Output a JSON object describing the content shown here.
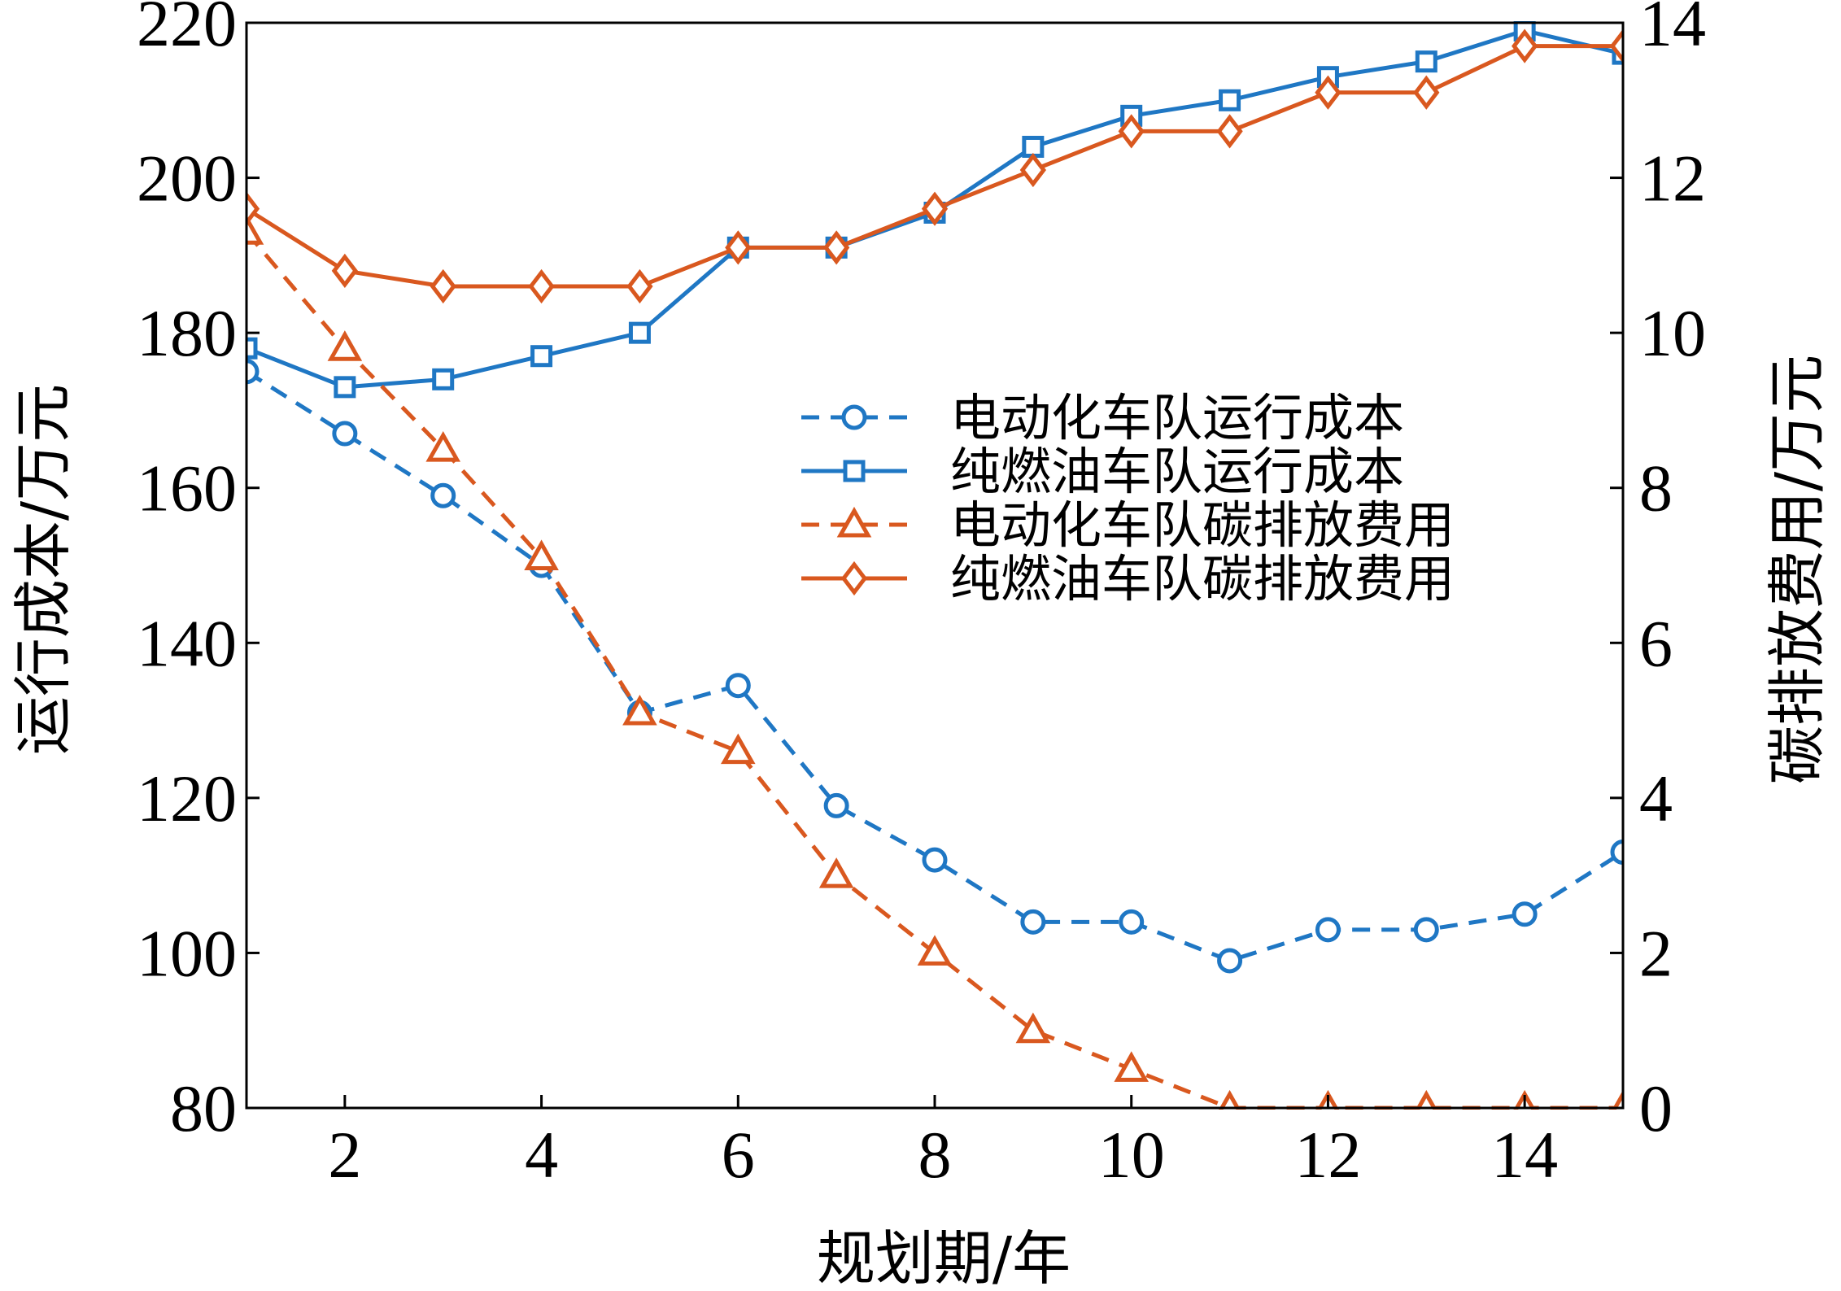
{
  "chart_data": {
    "type": "line",
    "xlabel": "规划期/年",
    "ylabel_left": "运行成本/万元",
    "ylabel_right": "碳排放费用/万元",
    "xlim": [
      1,
      15
    ],
    "ylim_left": [
      80,
      220
    ],
    "ylim_right": [
      0,
      14
    ],
    "x_ticks": [
      2,
      4,
      6,
      8,
      10,
      12,
      14
    ],
    "y_ticks_left": [
      80,
      100,
      120,
      140,
      160,
      180,
      200,
      220
    ],
    "y_ticks_right": [
      0,
      2,
      4,
      6,
      8,
      10,
      12,
      14
    ],
    "x_tick_labels": [
      "2",
      "4",
      "6",
      "8",
      "10",
      "12",
      "14"
    ],
    "y_tick_labels_left": [
      "80",
      "100",
      "120",
      "140",
      "160",
      "180",
      "200",
      "220"
    ],
    "y_tick_labels_right": [
      "0",
      "2",
      "4",
      "6",
      "8",
      "10",
      "12",
      "14"
    ],
    "colors": {
      "blue": "#1f77c4",
      "orange": "#d9581f"
    },
    "legend_position": "center-right",
    "series": [
      {
        "name": "电动化车队运行成本",
        "axis": "left",
        "color": "#1f77c4",
        "dash": true,
        "marker": "circle",
        "x": [
          1,
          2,
          3,
          4,
          5,
          6,
          7,
          8,
          9,
          10,
          11,
          12,
          13,
          14,
          15
        ],
        "values": [
          175,
          167,
          159,
          150,
          131,
          134.5,
          119,
          112,
          104,
          104,
          99,
          103,
          103,
          105,
          113
        ]
      },
      {
        "name": "纯燃油车队运行成本",
        "axis": "left",
        "color": "#1f77c4",
        "dash": false,
        "marker": "square",
        "x": [
          1,
          2,
          3,
          4,
          5,
          6,
          7,
          8,
          9,
          10,
          11,
          12,
          13,
          14,
          15
        ],
        "values": [
          178,
          173,
          174,
          177,
          180,
          191,
          191,
          195.5,
          204,
          208,
          210,
          213,
          215,
          219,
          216
        ]
      },
      {
        "name": "电动化车队碳排放费用",
        "axis": "right",
        "color": "#d9581f",
        "dash": true,
        "marker": "triangle",
        "x": [
          1,
          2,
          3,
          4,
          5,
          6,
          7,
          8,
          9,
          10,
          11,
          12,
          13,
          14,
          15
        ],
        "values": [
          11.3,
          9.8,
          8.5,
          7.1,
          5.1,
          4.6,
          3.0,
          2.0,
          1.0,
          0.5,
          0,
          0,
          0,
          0,
          0
        ]
      },
      {
        "name": "纯燃油车队碳排放费用",
        "axis": "right",
        "color": "#d9581f",
        "dash": false,
        "marker": "diamond",
        "x": [
          1,
          2,
          3,
          4,
          5,
          6,
          7,
          8,
          9,
          10,
          11,
          12,
          13,
          14,
          15
        ],
        "values": [
          11.6,
          10.8,
          10.6,
          10.6,
          10.6,
          11.1,
          11.1,
          11.6,
          12.1,
          12.6,
          12.6,
          13.1,
          13.1,
          13.7,
          13.7
        ]
      }
    ]
  }
}
